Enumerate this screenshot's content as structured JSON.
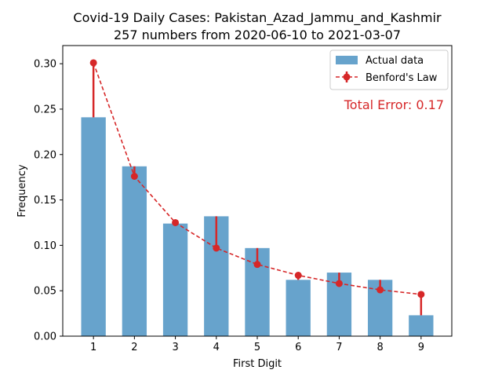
{
  "chart_data": {
    "type": "bar",
    "title_line1": "Covid-19 Daily Cases: Pakistan_Azad_Jammu_and_Kashmir",
    "title_line2": "257 numbers from 2020-06-10 to 2021-03-07",
    "xlabel": "First Digit",
    "ylabel": "Frequency",
    "categories": [
      "1",
      "2",
      "3",
      "4",
      "5",
      "6",
      "7",
      "8",
      "9"
    ],
    "x": [
      1,
      2,
      3,
      4,
      5,
      6,
      7,
      8,
      9
    ],
    "ylim": [
      0,
      0.32
    ],
    "yticks": [
      0.0,
      0.05,
      0.1,
      0.15,
      0.2,
      0.25,
      0.3
    ],
    "ytick_labels": [
      "0.00",
      "0.05",
      "0.10",
      "0.15",
      "0.20",
      "0.25",
      "0.30"
    ],
    "grid": false,
    "legend_position": "top-right",
    "series": [
      {
        "name": "Actual data",
        "kind": "bar",
        "color": "#1f77b4",
        "values": [
          0.241,
          0.187,
          0.124,
          0.132,
          0.097,
          0.062,
          0.07,
          0.062,
          0.023
        ]
      },
      {
        "name": "Benford's Law",
        "kind": "line-dashed-markers",
        "color": "#d62728",
        "values": [
          0.301,
          0.176,
          0.125,
          0.097,
          0.079,
          0.067,
          0.058,
          0.051,
          0.046
        ]
      }
    ],
    "annotation": "Total Error: 0.17",
    "annotation_color": "#d62728"
  }
}
